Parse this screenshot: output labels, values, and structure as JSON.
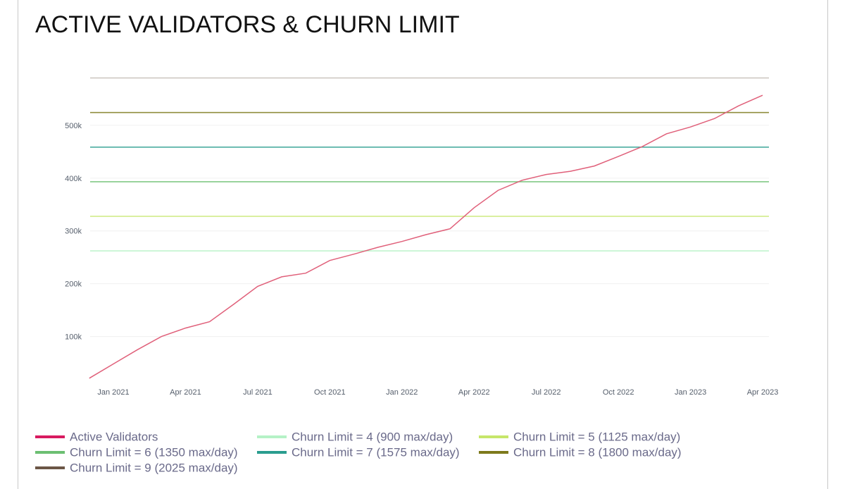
{
  "chart_data": {
    "type": "line",
    "title": "ACTIVE VALIDATORS & CHURN LIMIT",
    "x": [
      "2020-12",
      "2021-01",
      "2021-02",
      "2021-03",
      "2021-04",
      "2021-05",
      "2021-06",
      "2021-07",
      "2021-08",
      "2021-09",
      "2021-10",
      "2021-11",
      "2021-12",
      "2022-01",
      "2022-02",
      "2022-03",
      "2022-04",
      "2022-05",
      "2022-06",
      "2022-07",
      "2022-08",
      "2022-09",
      "2022-10",
      "2022-11",
      "2022-12",
      "2023-01",
      "2023-02",
      "2023-03",
      "2023-04"
    ],
    "series": [
      {
        "name": "Active Validators",
        "color": "#e0607a",
        "values": [
          21000,
          48000,
          75000,
          100000,
          116000,
          128000,
          161000,
          195000,
          213000,
          220000,
          244000,
          256000,
          269000,
          280000,
          293000,
          304000,
          344000,
          377000,
          396000,
          407000,
          413000,
          423000,
          441000,
          460000,
          484000,
          497000,
          513000,
          537000,
          557000
        ]
      }
    ],
    "reference_lines": [
      {
        "name": "Churn Limit = 4 (900 max/day)",
        "color": "#b5f2c6",
        "value": 262144
      },
      {
        "name": "Churn Limit = 5 (1125 max/day)",
        "color": "#c6e66a",
        "value": 327680
      },
      {
        "name": "Churn Limit = 6 (1350 max/day)",
        "color": "#6cbf72",
        "value": 393216
      },
      {
        "name": "Churn Limit = 7 (1575 max/day)",
        "color": "#2a9d8f",
        "value": 458752
      },
      {
        "name": "Churn Limit = 8 (1800 max/day)",
        "color": "#7d7a1c",
        "value": 524288
      },
      {
        "name": "Churn Limit = 9 (2025 max/day)",
        "color": "#6b5646",
        "value": 589824
      }
    ],
    "legend_swatch_colors": [
      "#d81b60"
    ],
    "ylim": [
      20000,
      590000
    ],
    "yticks": [
      {
        "value": 100000,
        "label": "100k"
      },
      {
        "value": 200000,
        "label": "200k"
      },
      {
        "value": 300000,
        "label": "300k"
      },
      {
        "value": 400000,
        "label": "400k"
      },
      {
        "value": 500000,
        "label": "500k"
      }
    ],
    "xticks": [
      {
        "value": "2021-01",
        "label": "Jan 2021"
      },
      {
        "value": "2021-04",
        "label": "Apr 2021"
      },
      {
        "value": "2021-07",
        "label": "Jul 2021"
      },
      {
        "value": "2021-10",
        "label": "Oct 2021"
      },
      {
        "value": "2022-01",
        "label": "Jan 2022"
      },
      {
        "value": "2022-04",
        "label": "Apr 2022"
      },
      {
        "value": "2022-07",
        "label": "Jul 2022"
      },
      {
        "value": "2022-10",
        "label": "Oct 2022"
      },
      {
        "value": "2023-01",
        "label": "Jan 2023"
      },
      {
        "value": "2023-04",
        "label": "Apr 2023"
      }
    ],
    "grid": true
  }
}
